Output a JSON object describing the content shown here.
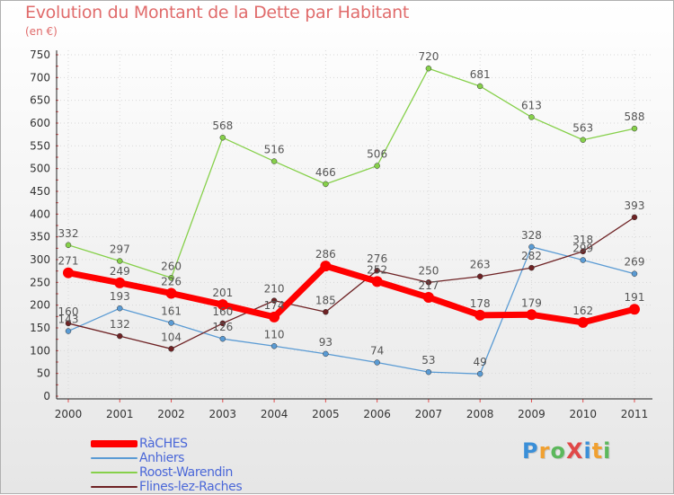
{
  "title": "Evolution du Montant de la Dette par Habitant",
  "unit": "(en €)",
  "logo": {
    "text": "ProXiti",
    "letters": [
      {
        "ch": "P",
        "color": "#3a8fd8"
      },
      {
        "ch": "r",
        "color": "#f0a030"
      },
      {
        "ch": "o",
        "color": "#5cb85c"
      },
      {
        "ch": "X",
        "color": "#e04848"
      },
      {
        "ch": "i",
        "color": "#3a8fd8"
      },
      {
        "ch": "t",
        "color": "#f0a030"
      },
      {
        "ch": "i",
        "color": "#5cb85c"
      }
    ]
  },
  "chart_data": {
    "type": "line",
    "title": "Evolution du Montant de la Dette par Habitant",
    "ylabel": "(en €)",
    "xlabel": "",
    "ylim": [
      0,
      750
    ],
    "yticks": [
      0,
      50,
      100,
      150,
      200,
      250,
      300,
      350,
      400,
      450,
      500,
      550,
      600,
      650,
      700,
      750
    ],
    "grid": true,
    "legend_position": "bottom-left",
    "categories": [
      "2000",
      "2001",
      "2002",
      "2003",
      "2004",
      "2005",
      "2006",
      "2007",
      "2008",
      "2009",
      "2010",
      "2011"
    ],
    "series": [
      {
        "name": "RàCHES",
        "color": "#ff0000",
        "values": [
          271,
          249,
          226,
          201,
          174,
          286,
          252,
          217,
          178,
          179,
          162,
          191
        ],
        "labels": [
          "271",
          "249",
          "226",
          "201",
          "174",
          "286",
          "252",
          "217",
          "178",
          "179",
          "162",
          "191"
        ]
      },
      {
        "name": "Anhiers",
        "color": "#5a9bd4",
        "values": [
          143,
          193,
          161,
          126,
          110,
          93,
          74,
          53,
          49,
          328,
          299,
          269
        ],
        "labels": [
          "143",
          "193",
          "161",
          "126",
          "110",
          "93",
          "74",
          "53",
          "49",
          "328",
          "299",
          "269"
        ]
      },
      {
        "name": "Roost-Warendin",
        "color": "#86d04a",
        "values": [
          332,
          297,
          260,
          568,
          516,
          466,
          506,
          720,
          681,
          613,
          563,
          588
        ],
        "labels": [
          "332",
          "297",
          "260",
          "568",
          "516",
          "466",
          "506",
          "720",
          "681",
          "613",
          "563",
          "588"
        ]
      },
      {
        "name": "Flines-lez-Raches",
        "color": "#6e2224",
        "values": [
          160,
          132,
          104,
          160,
          210,
          185,
          276,
          250,
          263,
          282,
          318,
          393
        ],
        "labels": [
          "160",
          "132",
          "104",
          "160",
          "210",
          "185",
          "276",
          "250",
          "263",
          "282",
          "318",
          "393"
        ]
      }
    ]
  }
}
